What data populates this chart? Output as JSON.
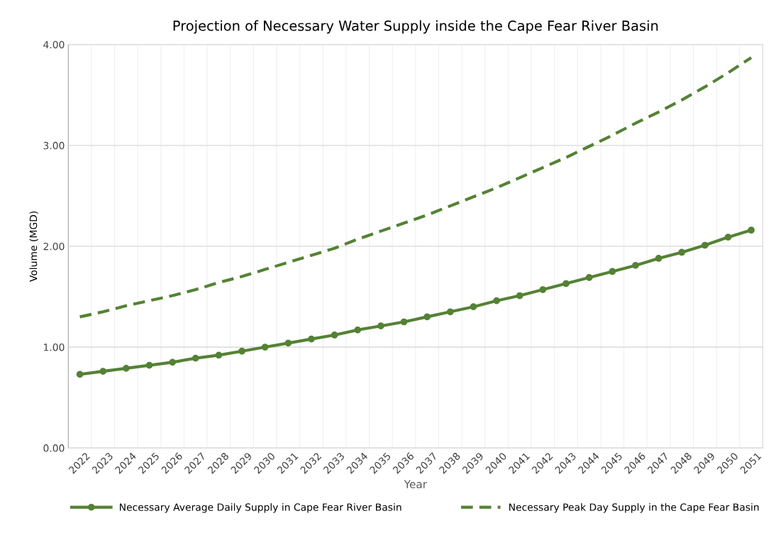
{
  "chart_data": {
    "type": "line",
    "title": "Projection of Necessary Water Supply inside the Cape Fear River Basin",
    "xlabel": "Year",
    "ylabel": "Volume (MGD)",
    "categories": [
      "2022",
      "2023",
      "2024",
      "2025",
      "2026",
      "2027",
      "2028",
      "2029",
      "2030",
      "2031",
      "2032",
      "2033",
      "2034",
      "2035",
      "2036",
      "2037",
      "2038",
      "2039",
      "2040",
      "2041",
      "2042",
      "2043",
      "2044",
      "2045",
      "2046",
      "2047",
      "2048",
      "2049",
      "2050",
      "2051"
    ],
    "series": [
      {
        "name": "Necessary Average Daily Supply in Cape Fear River Basin",
        "color": "#548235",
        "marker": "circle",
        "line_style": "solid",
        "values": [
          0.73,
          0.76,
          0.79,
          0.82,
          0.85,
          0.89,
          0.92,
          0.96,
          1.0,
          1.04,
          1.08,
          1.12,
          1.17,
          1.21,
          1.25,
          1.3,
          1.35,
          1.4,
          1.46,
          1.51,
          1.57,
          1.63,
          1.69,
          1.75,
          1.81,
          1.88,
          1.94,
          2.01,
          2.09,
          2.16
        ]
      },
      {
        "name": "Necessary Peak Day Supply in the Cape Fear Basin",
        "color": "#548235",
        "marker": "none",
        "line_style": "dashed",
        "values": [
          1.3,
          1.35,
          1.41,
          1.46,
          1.51,
          1.57,
          1.64,
          1.7,
          1.77,
          1.84,
          1.91,
          1.98,
          2.07,
          2.15,
          2.23,
          2.31,
          2.4,
          2.49,
          2.58,
          2.68,
          2.78,
          2.88,
          2.99,
          3.1,
          3.22,
          3.33,
          3.45,
          3.58,
          3.72,
          3.87
        ]
      }
    ],
    "ylim": [
      0,
      4
    ],
    "yticks": [
      {
        "value": 0,
        "label": "0.00"
      },
      {
        "value": 1,
        "label": "1.00"
      },
      {
        "value": 2,
        "label": "2.00"
      },
      {
        "value": 3,
        "label": "3.00"
      },
      {
        "value": 4,
        "label": "4.00"
      }
    ],
    "grid": true,
    "legend": "bottom"
  }
}
